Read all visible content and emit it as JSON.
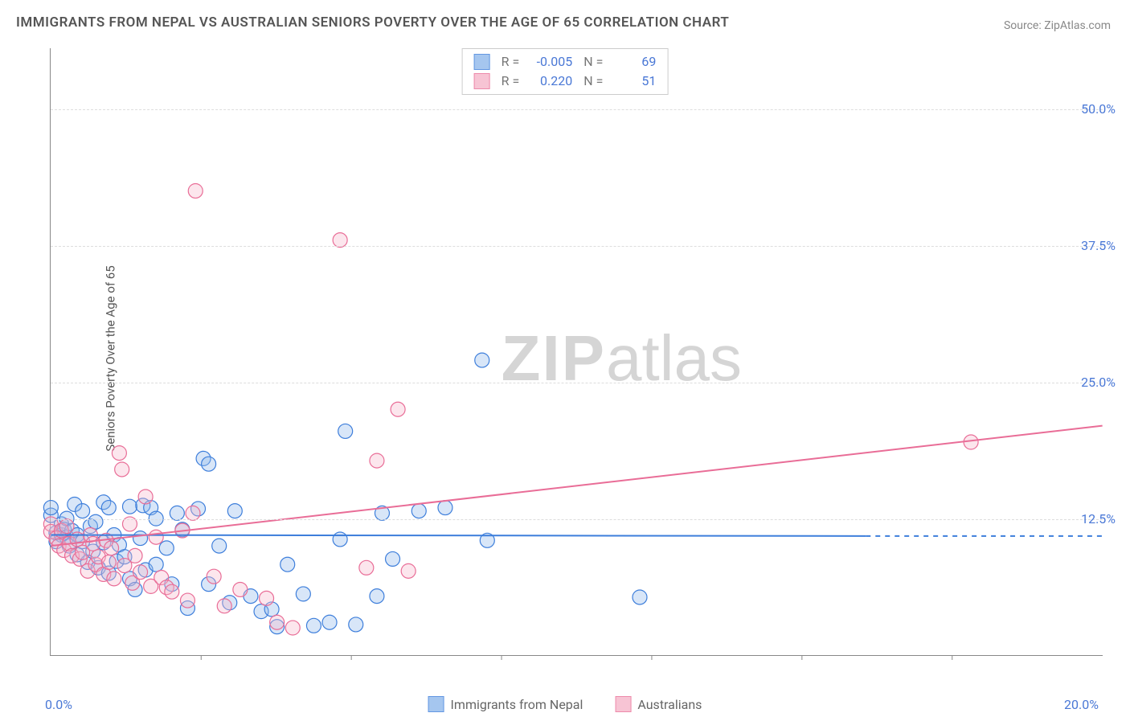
{
  "title": "IMMIGRANTS FROM NEPAL VS AUSTRALIAN SENIORS POVERTY OVER THE AGE OF 65 CORRELATION CHART",
  "source_label": "Source: ",
  "source_name": "ZipAtlas.com",
  "watermark_a": "ZIP",
  "watermark_b": "atlas",
  "ylabel": "Seniors Poverty Over the Age of 65",
  "chart": {
    "type": "scatter",
    "xlim": [
      0,
      20
    ],
    "ylim": [
      0,
      55.56
    ],
    "x_ticks": [
      0,
      20
    ],
    "x_tick_labels": [
      "0.0%",
      "20.0%"
    ],
    "y_ticks": [
      12.5,
      25.0,
      37.5,
      50.0
    ],
    "y_tick_labels": [
      "12.5%",
      "25.0%",
      "37.5%",
      "50.0%"
    ],
    "grid_color": "#dddddd",
    "axis_color": "#888888",
    "background_color": "#ffffff",
    "marker_radius": 9,
    "marker_fill_opacity": 0.35,
    "line_width": 2,
    "series": [
      {
        "name": "Immigrants from Nepal",
        "color_stroke": "#3d7edb",
        "color_fill": "#8fb8ec",
        "R": "-0.005",
        "N": "69",
        "trend": {
          "x1": 0,
          "y1": 11.0,
          "x2": 15.5,
          "y2": 10.9
        },
        "trend_dash": {
          "x1": 15.5,
          "y1": 10.9,
          "x2": 20,
          "y2": 10.9
        },
        "points": [
          [
            0.0,
            12.8
          ],
          [
            0.0,
            13.5
          ],
          [
            0.1,
            11.2
          ],
          [
            0.1,
            10.4
          ],
          [
            0.2,
            11.0
          ],
          [
            0.2,
            12.0
          ],
          [
            0.25,
            11.5
          ],
          [
            0.3,
            10.8
          ],
          [
            0.3,
            12.5
          ],
          [
            0.35,
            10.0
          ],
          [
            0.4,
            11.4
          ],
          [
            0.45,
            13.8
          ],
          [
            0.5,
            11.0
          ],
          [
            0.5,
            9.2
          ],
          [
            0.6,
            10.4
          ],
          [
            0.6,
            13.2
          ],
          [
            0.7,
            8.5
          ],
          [
            0.75,
            11.8
          ],
          [
            0.8,
            9.5
          ],
          [
            0.85,
            12.2
          ],
          [
            0.9,
            8.0
          ],
          [
            1.0,
            14.0
          ],
          [
            1.0,
            10.3
          ],
          [
            1.1,
            7.5
          ],
          [
            1.1,
            13.5
          ],
          [
            1.2,
            11.0
          ],
          [
            1.25,
            8.6
          ],
          [
            1.3,
            10.1
          ],
          [
            1.4,
            9.0
          ],
          [
            1.5,
            13.6
          ],
          [
            1.5,
            7.0
          ],
          [
            1.6,
            6.0
          ],
          [
            1.7,
            10.7
          ],
          [
            1.75,
            13.7
          ],
          [
            1.8,
            7.8
          ],
          [
            1.9,
            13.5
          ],
          [
            2.0,
            8.3
          ],
          [
            2.0,
            12.5
          ],
          [
            2.2,
            9.8
          ],
          [
            2.3,
            6.5
          ],
          [
            2.4,
            13.0
          ],
          [
            2.5,
            11.5
          ],
          [
            2.6,
            4.3
          ],
          [
            2.8,
            13.4
          ],
          [
            2.9,
            18.0
          ],
          [
            3.0,
            6.5
          ],
          [
            3.0,
            17.5
          ],
          [
            3.2,
            10.0
          ],
          [
            3.4,
            4.8
          ],
          [
            3.5,
            13.2
          ],
          [
            3.8,
            5.4
          ],
          [
            4.0,
            4.0
          ],
          [
            4.2,
            4.2
          ],
          [
            4.3,
            2.6
          ],
          [
            4.5,
            8.3
          ],
          [
            4.8,
            5.6
          ],
          [
            5.0,
            2.7
          ],
          [
            5.3,
            3.0
          ],
          [
            5.5,
            10.6
          ],
          [
            5.6,
            20.5
          ],
          [
            5.8,
            2.8
          ],
          [
            6.2,
            5.4
          ],
          [
            6.3,
            13.0
          ],
          [
            6.5,
            8.8
          ],
          [
            7.0,
            13.2
          ],
          [
            7.5,
            13.5
          ],
          [
            8.2,
            27.0
          ],
          [
            8.3,
            10.5
          ],
          [
            11.2,
            5.3
          ]
        ]
      },
      {
        "name": "Australians",
        "color_stroke": "#e96d97",
        "color_fill": "#f6b6ca",
        "R": "0.220",
        "N": "51",
        "trend": {
          "x1": 0,
          "y1": 10.0,
          "x2": 20,
          "y2": 21.0
        },
        "points": [
          [
            0.0,
            12.0
          ],
          [
            0.0,
            11.3
          ],
          [
            0.1,
            10.7
          ],
          [
            0.15,
            10.0
          ],
          [
            0.2,
            11.4
          ],
          [
            0.25,
            9.6
          ],
          [
            0.3,
            11.8
          ],
          [
            0.35,
            10.2
          ],
          [
            0.4,
            9.1
          ],
          [
            0.5,
            10.6
          ],
          [
            0.55,
            8.8
          ],
          [
            0.6,
            9.4
          ],
          [
            0.7,
            7.7
          ],
          [
            0.75,
            11.0
          ],
          [
            0.8,
            10.2
          ],
          [
            0.85,
            8.3
          ],
          [
            0.9,
            9.0
          ],
          [
            1.0,
            7.4
          ],
          [
            1.05,
            10.5
          ],
          [
            1.1,
            8.5
          ],
          [
            1.15,
            9.8
          ],
          [
            1.2,
            7.0
          ],
          [
            1.3,
            18.5
          ],
          [
            1.35,
            17.0
          ],
          [
            1.4,
            8.2
          ],
          [
            1.5,
            12.0
          ],
          [
            1.55,
            6.6
          ],
          [
            1.6,
            9.1
          ],
          [
            1.7,
            7.6
          ],
          [
            1.8,
            14.5
          ],
          [
            1.9,
            6.3
          ],
          [
            2.0,
            10.8
          ],
          [
            2.1,
            7.1
          ],
          [
            2.2,
            6.2
          ],
          [
            2.3,
            5.8
          ],
          [
            2.5,
            11.4
          ],
          [
            2.6,
            5.0
          ],
          [
            2.7,
            13.0
          ],
          [
            2.75,
            42.5
          ],
          [
            3.1,
            7.2
          ],
          [
            3.3,
            4.5
          ],
          [
            3.6,
            6.0
          ],
          [
            4.1,
            5.2
          ],
          [
            4.3,
            3.0
          ],
          [
            4.6,
            2.5
          ],
          [
            5.5,
            38.0
          ],
          [
            6.0,
            8.0
          ],
          [
            6.2,
            17.8
          ],
          [
            6.6,
            22.5
          ],
          [
            6.8,
            7.7
          ],
          [
            17.5,
            19.5
          ]
        ]
      }
    ]
  },
  "legend_bottom": [
    {
      "label": "Immigrants from Nepal"
    },
    {
      "label": "Australians"
    }
  ]
}
